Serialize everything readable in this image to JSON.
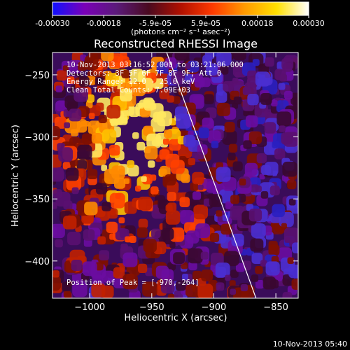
{
  "colorbar": {
    "ticks": [
      "-0.00030",
      "-0.00018",
      "-5.9e-05",
      "5.9e-05",
      "0.00018",
      "0.00030"
    ],
    "tick_values": [
      -0.0003,
      -0.00018,
      -5.9e-05,
      5.9e-05,
      0.00018,
      0.0003
    ],
    "range": [
      -0.0003,
      0.0003
    ],
    "units": "(photons cm⁻² s⁻¹ asec⁻²)",
    "palette": [
      "#1010ff",
      "#7a00b8",
      "#5b1a7a",
      "#4a0a20",
      "#b01000",
      "#ff3a00",
      "#ff9a00",
      "#ffe000",
      "#ffffff"
    ]
  },
  "plot": {
    "title": "Reconstructed RHESSI Image",
    "annotations": {
      "time": "10-Nov-2013 03:16:52.000 to 03:21:06.000",
      "detectors": "Detectors: 3F 5F 6F 7F 8F 9F; Att 0",
      "energy": "Energy Range: 12.0 - 25.0 keV",
      "clean": "Clean    Total Counts: 7.09E+03",
      "peak": "Position of Peak = [-970,-264]"
    },
    "footer": "10-Nov-2013 05:40"
  },
  "chart_data": {
    "type": "heatmap",
    "title": "Reconstructed RHESSI Image",
    "xlabel": "Heliocentric X (arcsec)",
    "ylabel": "Heliocentric Y (arcsec)",
    "xlim": [
      -1030,
      -832
    ],
    "ylim": [
      -430,
      -232
    ],
    "xticks": [
      -1000,
      -950,
      -900,
      -850
    ],
    "yticks": [
      -250,
      -300,
      -350,
      -400
    ],
    "xtick_labels": [
      "−1000",
      "−950",
      "−900",
      "−850"
    ],
    "ytick_labels": [
      "−250",
      "−300",
      "−350",
      "−400"
    ],
    "peak": [
      -970,
      -264
    ],
    "limb_line": [
      [
        -938,
        -232
      ],
      [
        -866,
        -430
      ]
    ],
    "grid": false
  }
}
